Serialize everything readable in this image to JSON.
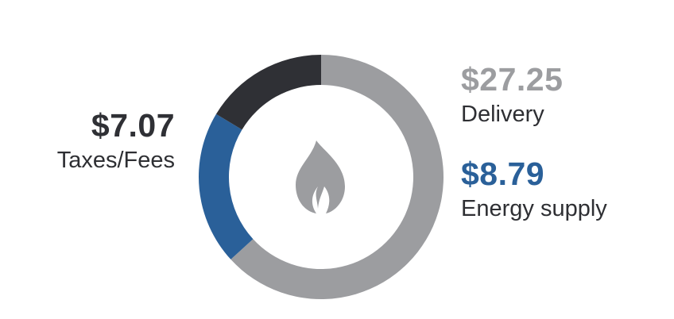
{
  "chart_data": {
    "type": "pie",
    "donut": true,
    "center_icon": "flame-icon",
    "slices": [
      {
        "label": "Delivery",
        "value": 27.25,
        "value_label": "$27.25",
        "color": "#9c9da0"
      },
      {
        "label": "Taxes/Fees",
        "value": 7.07,
        "value_label": "$7.07",
        "color": "#2f3035"
      },
      {
        "label": "Energy supply",
        "value": 8.79,
        "value_label": "$8.79",
        "color": "#2a6099"
      }
    ],
    "slice_order_clockwise_from_top": [
      "Delivery",
      "Energy supply",
      "Taxes/Fees"
    ]
  },
  "colors": {
    "icon": "#9c9da0",
    "label_text": "#2e2f33"
  }
}
